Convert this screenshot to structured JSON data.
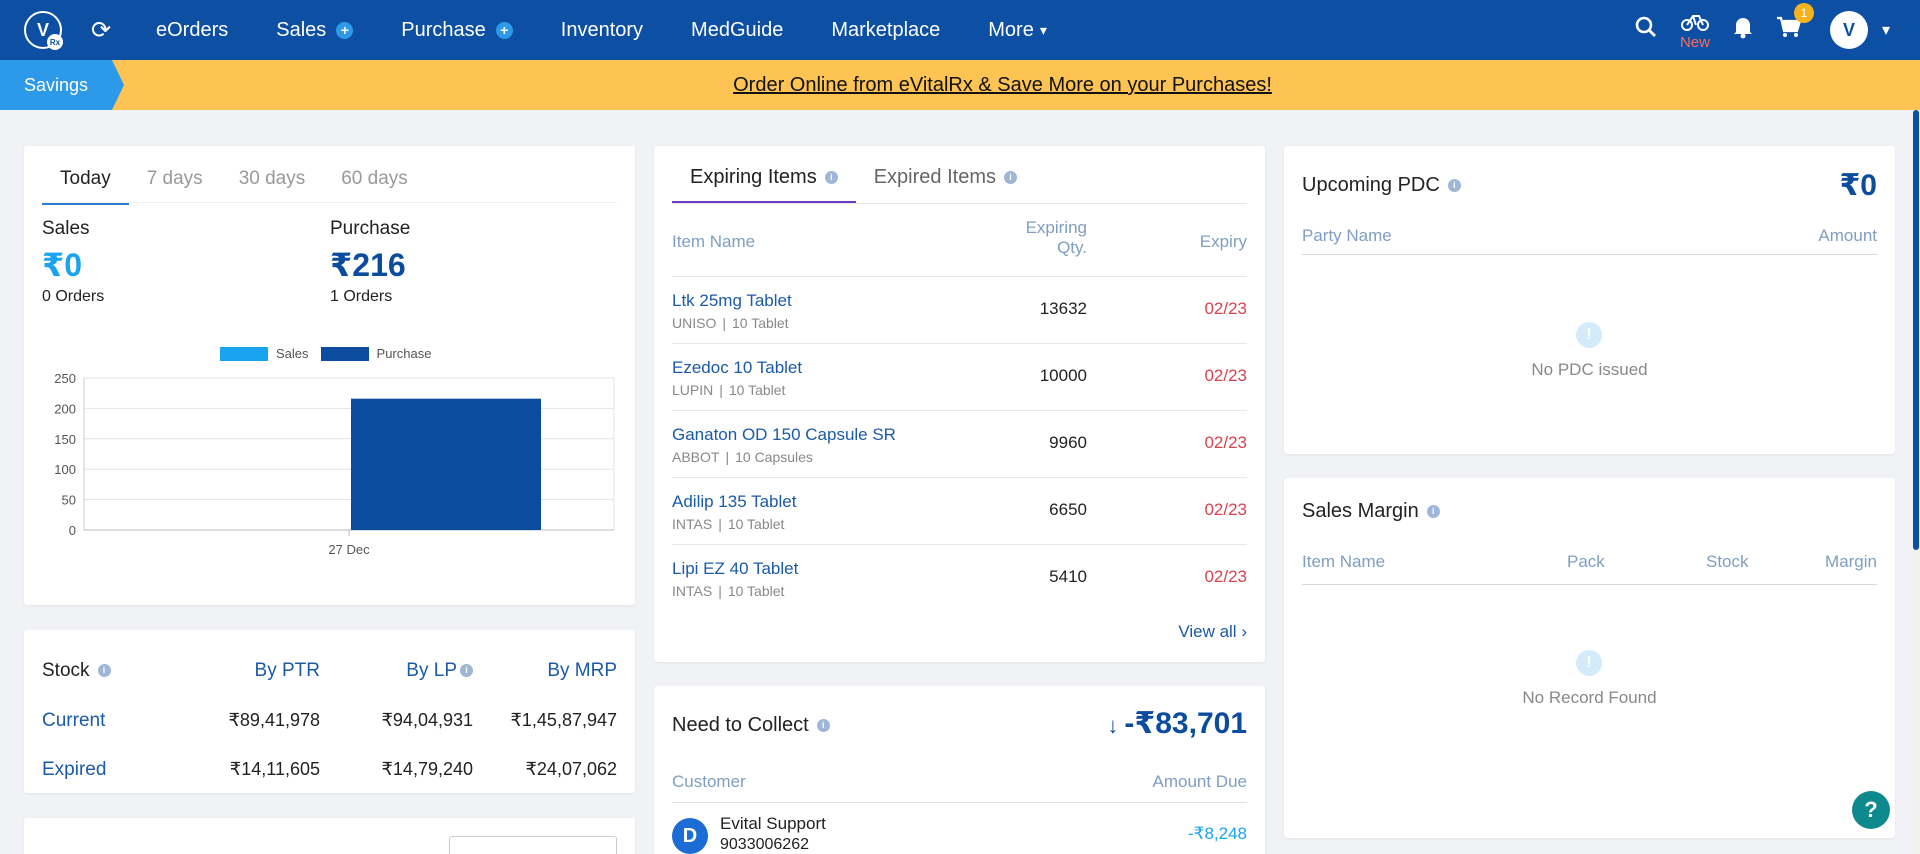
{
  "nav": {
    "items": [
      {
        "label": "eOrders",
        "plus": false
      },
      {
        "label": "Sales",
        "plus": true
      },
      {
        "label": "Purchase",
        "plus": true
      },
      {
        "label": "Inventory",
        "plus": false
      },
      {
        "label": "MedGuide",
        "plus": false
      },
      {
        "label": "Marketplace",
        "plus": false
      }
    ],
    "more_label": "More",
    "new_label": "New",
    "cart_count": "1",
    "logo_letter": "V",
    "logo_badge": "Rx",
    "avatar_letter": "V"
  },
  "banner": {
    "tag": "Savings",
    "text": "Order Online from eVitalRx & Save More on your Purchases!"
  },
  "summary": {
    "tabs": [
      "Today",
      "7 days",
      "30 days",
      "60 days"
    ],
    "sales_label": "Sales",
    "sales_value": "₹0",
    "sales_orders": "0 Orders",
    "purchase_label": "Purchase",
    "purchase_value": "₹216",
    "purchase_orders": "1 Orders"
  },
  "chart_data": {
    "type": "bar",
    "categories": [
      "27 Dec"
    ],
    "series": [
      {
        "name": "Sales",
        "values": [
          0
        ],
        "color": "#1aa3ef"
      },
      {
        "name": "Purchase",
        "values": [
          216
        ],
        "color": "#0b4c9e"
      }
    ],
    "yticks": [
      "250",
      "200",
      "150",
      "100",
      "50",
      "0"
    ],
    "ylim": [
      0,
      250
    ],
    "grid": true,
    "legend": "top"
  },
  "stock": {
    "title": "Stock",
    "cols": [
      "By PTR",
      "By LP",
      "By MRP"
    ],
    "rows": [
      {
        "label": "Current",
        "values": [
          "₹89,41,978",
          "₹94,04,931",
          "₹1,45,87,947"
        ]
      },
      {
        "label": "Expired",
        "values": [
          "₹14,11,605",
          "₹14,79,240",
          "₹24,07,062"
        ]
      }
    ]
  },
  "expiring": {
    "tabs": [
      "Expiring Items",
      "Expired Items"
    ],
    "col_item": "Item Name",
    "col_qty_1": "Expiring",
    "col_qty_2": "Qty.",
    "col_expiry": "Expiry",
    "items": [
      {
        "name": "Ltk 25mg Tablet",
        "company": "UNISO",
        "pack": "10 Tablet",
        "qty": "13632",
        "expiry": "02/23"
      },
      {
        "name": "Ezedoc 10 Tablet",
        "company": "LUPIN",
        "pack": "10 Tablet",
        "qty": "10000",
        "expiry": "02/23"
      },
      {
        "name": "Ganaton OD 150 Capsule SR",
        "company": "ABBOT",
        "pack": "10 Capsules",
        "qty": "9960",
        "expiry": "02/23"
      },
      {
        "name": "Adilip 135 Tablet",
        "company": "INTAS",
        "pack": "10 Tablet",
        "qty": "6650",
        "expiry": "02/23"
      },
      {
        "name": "Lipi EZ 40 Tablet",
        "company": "INTAS",
        "pack": "10 Tablet",
        "qty": "5410",
        "expiry": "02/23"
      }
    ],
    "view_all": "View all"
  },
  "collect": {
    "title": "Need to Collect",
    "amount": "-₹83,701",
    "col_customer": "Customer",
    "col_amount": "Amount Due",
    "rows": [
      {
        "initial": "D",
        "name": "Evital Support",
        "phone": "9033006262",
        "amount": "-₹8,248"
      }
    ]
  },
  "pdc": {
    "title": "Upcoming PDC",
    "amount": "₹0",
    "col_party": "Party Name",
    "col_amount": "Amount",
    "empty": "No PDC issued"
  },
  "margin": {
    "title": "Sales Margin",
    "cols": [
      "Item Name",
      "Pack",
      "Stock",
      "Margin"
    ],
    "empty": "No Record Found"
  },
  "help_label": "?"
}
